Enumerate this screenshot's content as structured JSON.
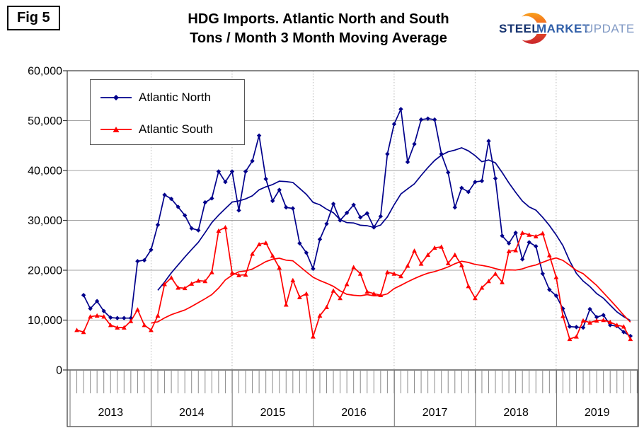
{
  "figure": {
    "label": "Fig 5"
  },
  "title": {
    "line1": "HDG Imports. Atlantic North and South",
    "line2": "Tons / Month 3 Month Moving Average"
  },
  "logo": {
    "steel": "STEEL",
    "market": "MARKET",
    "update": "UPDATE"
  },
  "chart_data": {
    "type": "line",
    "title": "HDG Imports. Atlantic North and South",
    "subtitle": "Tons / Month 3 Month Moving Average",
    "xlabel": "",
    "ylabel": "",
    "x_axis": {
      "unit": "month",
      "start": "2013-01",
      "end": "2019-12",
      "year_labels": [
        "2013",
        "2014",
        "2015",
        "2016",
        "2017",
        "2018",
        "2019"
      ]
    },
    "y_axis": {
      "min": 0,
      "max": 60000,
      "tick_interval": 10000,
      "tick_labels": [
        "0",
        "10,000",
        "20,000",
        "30,000",
        "40,000",
        "50,000",
        "60,000"
      ]
    },
    "grid": {
      "horizontal": true,
      "vertical_year_lines": true
    },
    "legend": {
      "position": "top-left",
      "entries": [
        "Atlantic North",
        "Atlantic South"
      ]
    },
    "trend_line": {
      "type": "trailing_mean",
      "window_months": 12
    },
    "series": [
      {
        "name": "Atlantic North",
        "color": "#00008b",
        "marker": "diamond",
        "start": "2013-03",
        "values_tons": [
          15000,
          12300,
          13800,
          11800,
          10500,
          10400,
          10400,
          10400,
          21800,
          22000,
          24100,
          29100,
          35100,
          34300,
          32700,
          31000,
          28400,
          28000,
          33600,
          34400,
          39800,
          37700,
          39800,
          32000,
          39800,
          41900,
          47000,
          38300,
          33900,
          36100,
          32600,
          32400,
          25400,
          23500,
          20300,
          26200,
          29300,
          33300,
          30000,
          31500,
          33100,
          30600,
          31400,
          28600,
          30800,
          43300,
          49300,
          52300,
          41700,
          45300,
          50200,
          50400,
          50200,
          43300,
          39600,
          32600,
          36500,
          35700,
          37700,
          37900,
          45900,
          38400,
          26900,
          25400,
          27500,
          22200,
          25600,
          24800,
          19300,
          16100,
          14900,
          12300,
          8700,
          8600,
          8500,
          12200,
          10600,
          11000,
          9000,
          8800,
          7600,
          6800
        ]
      },
      {
        "name": "Atlantic South",
        "color": "#ff0000",
        "marker": "triangle",
        "start": "2013-02",
        "values_tons": [
          8000,
          7600,
          10700,
          10900,
          10700,
          9000,
          8500,
          8500,
          9800,
          12100,
          9000,
          8000,
          10900,
          17200,
          18500,
          16500,
          16400,
          17300,
          17900,
          17800,
          19600,
          27900,
          28600,
          19500,
          19000,
          19100,
          23300,
          25200,
          25500,
          22900,
          20500,
          13100,
          18000,
          14600,
          15300,
          6700,
          10900,
          12600,
          15900,
          14400,
          17200,
          20600,
          19300,
          15700,
          15300,
          15000,
          19600,
          19300,
          18800,
          20900,
          23900,
          21300,
          23100,
          24500,
          24700,
          21400,
          23100,
          21000,
          16800,
          14400,
          16500,
          17800,
          19300,
          17600,
          23800,
          24000,
          27500,
          27100,
          26800,
          27400,
          23000,
          18600,
          10800,
          6200,
          6700,
          9900,
          9500,
          9900,
          10000,
          9600,
          9000,
          8700,
          6200
        ]
      }
    ]
  }
}
